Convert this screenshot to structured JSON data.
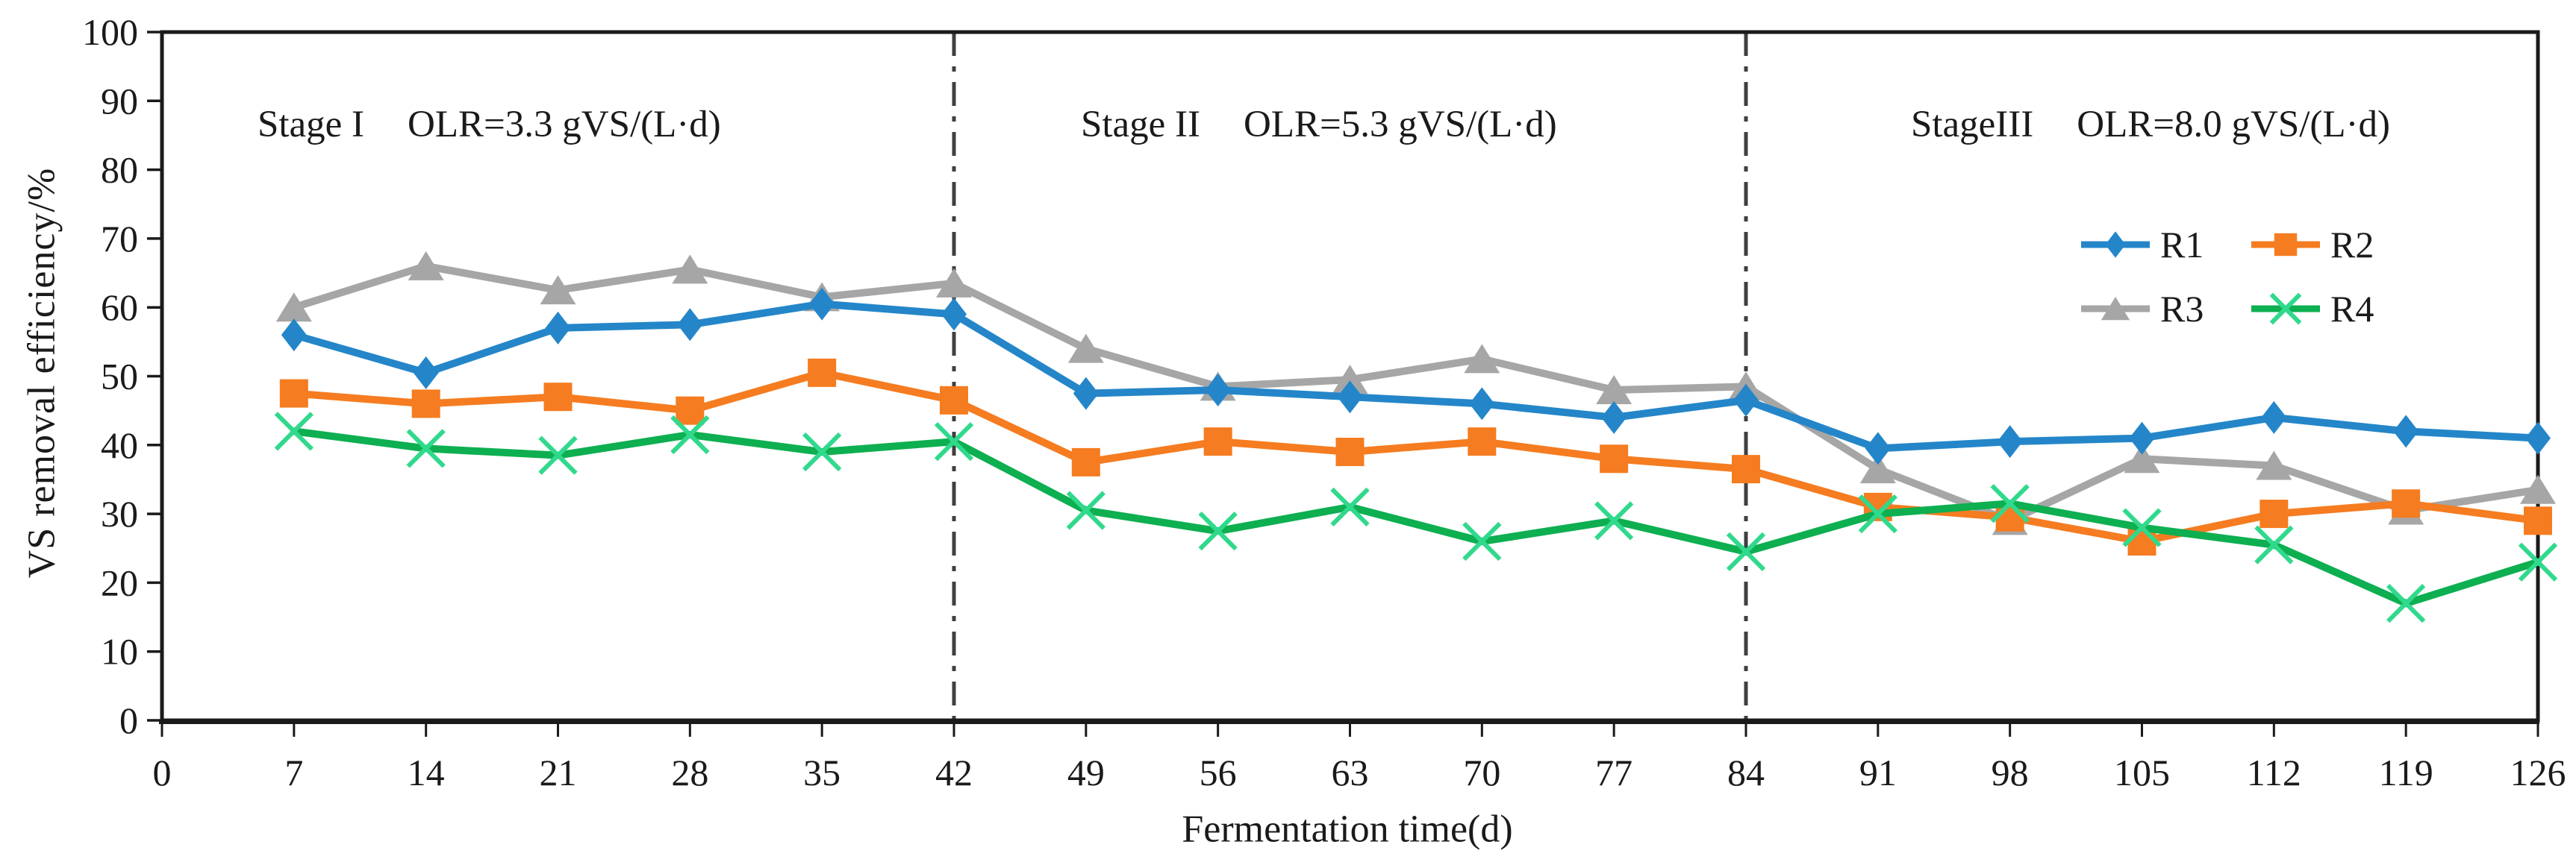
{
  "figure": {
    "stages": [
      {
        "name": "Stage I",
        "olr": "OLR=3.3 gVS/(L·d)",
        "boundary_day": 42
      },
      {
        "name": "Stage II",
        "olr": "OLR=5.3 gVS/(L·d)",
        "boundary_day": 84
      },
      {
        "name": "StageIII",
        "olr": "OLR=8.0 gVS/(L·d)"
      }
    ]
  },
  "colors": {
    "axis": "#1a1a1a",
    "stage_line": "#3f3f3f",
    "r1_blue": "#2486C8",
    "r2_orange": "#F57C20",
    "r3_gray": "#A6A6A6",
    "r4_green_line": "#0DAF50",
    "r4_green_marker": "#30D98C"
  },
  "chart_data": {
    "type": "line",
    "x": [
      7,
      14,
      21,
      28,
      35,
      42,
      49,
      56,
      63,
      70,
      77,
      84,
      91,
      98,
      105,
      112,
      119,
      126
    ],
    "series": [
      {
        "name": "R1",
        "marker": "diamond",
        "color": "#2486C8",
        "values": [
          56,
          50.5,
          57,
          57.5,
          60.5,
          59,
          47.5,
          48,
          47,
          46,
          44,
          46.5,
          39.5,
          40.5,
          41,
          44,
          42,
          41
        ]
      },
      {
        "name": "R2",
        "marker": "square",
        "color": "#F57C20",
        "values": [
          47.5,
          46,
          47,
          45,
          50.5,
          46.5,
          37.5,
          40.5,
          39,
          40.5,
          38,
          36.5,
          31,
          29.5,
          26,
          30,
          31.5,
          29
        ]
      },
      {
        "name": "R3",
        "marker": "triangle",
        "color": "#A6A6A6",
        "values": [
          60,
          66,
          62.5,
          65.5,
          61.5,
          63.5,
          54,
          48.5,
          49.5,
          52.5,
          48,
          48.5,
          36.5,
          29,
          38,
          37,
          30.5,
          33.5
        ]
      },
      {
        "name": "R4",
        "marker": "x",
        "color": "#0DAF50",
        "marker_color": "#30D98C",
        "values": [
          42,
          39.5,
          38.5,
          41.5,
          39,
          40.5,
          30.5,
          27.5,
          31,
          26,
          29,
          24.5,
          30,
          31.5,
          28,
          25.5,
          17,
          23
        ]
      }
    ],
    "xlabel": "Fermentation time(d)",
    "ylabel": "VS removal efficiency/%",
    "xlim": [
      0,
      126
    ],
    "ylim": [
      0,
      100
    ],
    "xticks": [
      0,
      7,
      14,
      21,
      28,
      35,
      42,
      49,
      56,
      63,
      70,
      77,
      84,
      91,
      98,
      105,
      112,
      119,
      126
    ],
    "yticks": [
      0,
      10,
      20,
      30,
      40,
      50,
      60,
      70,
      80,
      90,
      100
    ],
    "stage_line_days": [
      42,
      84
    ],
    "grid": false,
    "legend_position": "inside-upper-right",
    "legend": [
      "R1",
      "R2",
      "R3",
      "R4"
    ]
  }
}
